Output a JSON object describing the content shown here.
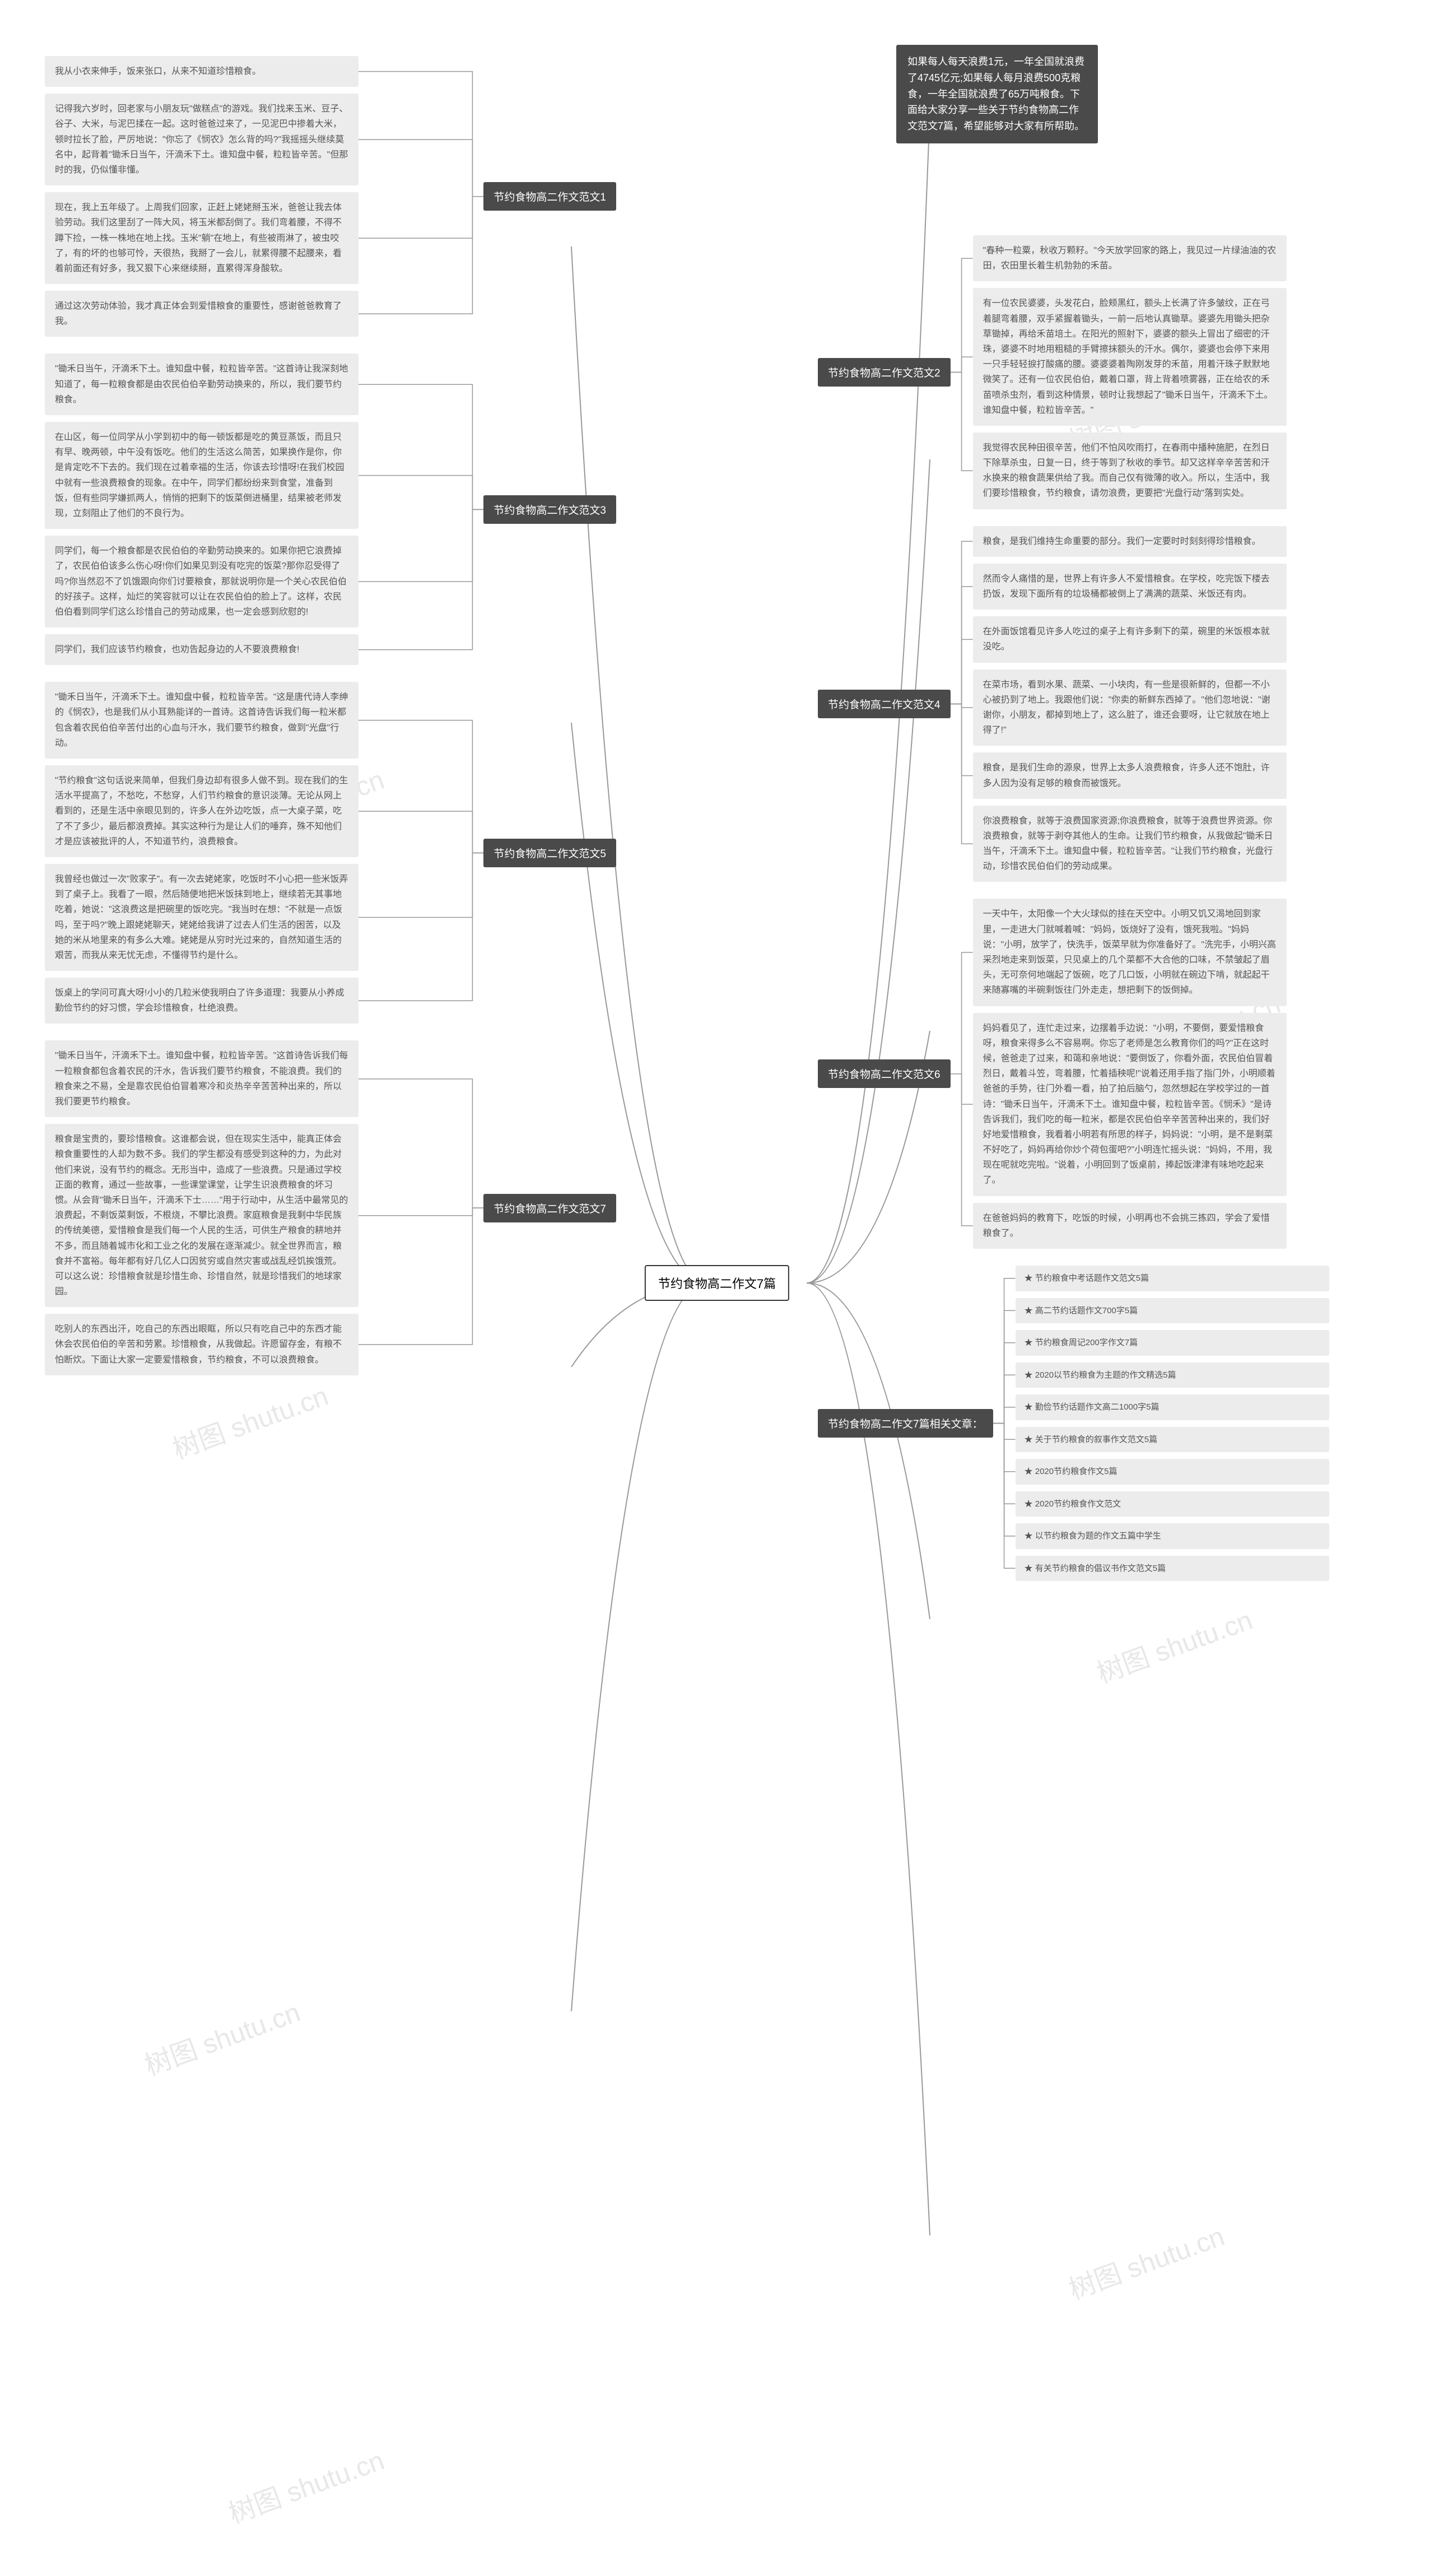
{
  "center": "节约食物高二作文7篇",
  "intro": "如果每人每天浪费1元，一年全国就浪费了4745亿元;如果每人每月浪费500克粮食，一年全国就浪费了65万吨粮食。下面给大家分享一些关于节约食物高二作文范文7篇，希望能够对大家有所帮助。",
  "watermarks": [
    "树图 shutu.cn"
  ],
  "left_branches": [
    {
      "title": "节约食物高二作文范文1",
      "leaves": [
        "我从小衣来伸手，饭来张口，从来不知道珍惜粮食。",
        "记得我六岁时，回老家与小朋友玩\"做糕点\"的游戏。我们找来玉米、豆子、谷子、大米，与泥巴揉在一起。这时爸爸过来了，一见泥巴中掺着大米，顿时拉长了脸，严厉地说：\"你忘了《悯农》怎么背的吗?\"我摇摇头继续莫名中，起背着\"锄禾日当午，汗滴禾下土。谁知盘中餐，粒粒皆辛苦。\"但那时的我，仍似懂非懂。",
        "现在，我上五年级了。上周我们回家，正赶上姥姥掰玉米，爸爸让我去体验劳动。我们这里刮了一阵大风，将玉米都刮倒了。我们弯着腰，不得不蹲下捡，一株一株地在地上找。玉米\"躺\"在地上，有些被雨淋了，被虫咬了，有的坏的也够可怜，天很热，我掰了一会儿，就累得腰不起腰来，看着前面还有好多，我又狠下心来继续掰，直累得浑身酸软。",
        "通过这次劳动体验，我才真正体会到爱惜粮食的重要性，感谢爸爸教育了我。"
      ]
    },
    {
      "title": "节约食物高二作文范文3",
      "leaves": [
        "\"锄禾日当午，汗滴禾下土。谁知盘中餐，粒粒皆辛苦。\"这首诗让我深刻地知道了，每一粒粮食都是由农民伯伯辛勤劳动换来的，所以，我们要节约粮食。",
        "在山区，每一位同学从小学到初中的每一顿饭都是吃的黄豆蒸饭，而且只有早、晚两顿，中午没有饭吃。他们的生活这么简苦，如果换作是你，你是肯定吃不下去的。我们现在过着幸福的生活，你该去珍惜呀!在我们校园中就有一些浪费粮食的现象。在中午，同学们都纷纷来到食堂，准备到饭，但有些同学嫌抓两人，悄悄的把剩下的饭菜倒进桶里，结果被老师发现，立刻阻止了他们的不良行为。",
        "同学们，每一个粮食都是农民伯伯的辛勤劳动换来的。如果你把它浪费掉了，农民伯伯该多么伤心呀!你们如果见到没有吃完的饭菜?那你忍受得了吗?你当然忍不了饥饿跟向你们讨要粮食，那就说明你是一个关心农民伯伯的好孩子。这样，灿烂的笑容就可以让在农民伯伯的脸上了。这样，农民伯伯看到同学们这么珍惜自己的劳动成果，也一定会感到欣慰的!",
        "同学们，我们应该节约粮食，也劝告起身边的人不要浪费粮食!"
      ]
    },
    {
      "title": "节约食物高二作文范文5",
      "leaves": [
        "\"锄禾日当午，汗滴禾下土。谁知盘中餐，粒粒皆辛苦。\"这是唐代诗人李绅的《悯农》，也是我们从小耳熟能详的一首诗。这首诗告诉我们每一粒米都包含着农民伯伯辛苦付出的心血与汗水，我们要节约粮食，做到\"光盘\"行动。",
        "\"节约粮食\"这句话说来简单，但我们身边却有很多人做不到。现在我们的生活水平提高了，不愁吃，不愁穿，人们节约粮食的意识淡薄。无论从网上看到的，还是生活中亲眼见到的，许多人在外边吃饭，点一大桌子菜，吃了不了多少，最后都浪费掉。其实这种行为是让人们的唾弃，殊不知他们才是应该被批评的人，不知道节约，浪费粮食。",
        "我曾经也做过一次\"败家子\"。有一次去姥姥家，吃饭时不小心把一些米饭弄到了桌子上。我看了一眼，然后随便地把米饭抹到地上，继续若无其事地吃着，她说：\"这浪费这是把碗里的饭吃完。\"我当时在想：\"不就是一点饭吗，至于吗?\"晚上跟姥姥聊天，姥姥给我讲了过去人们生活的困苦，以及她的米从地里来的有多么大难。姥姥是从穷时光过来的，自然知道生活的艰苦，而我从来无忧无虑，不懂得节约是什么。",
        "饭桌上的学问可真大呀!小小的几粒米使我明白了许多道理：我要从小养成勤俭节约的好习惯，学会珍惜粮食，杜绝浪费。"
      ]
    },
    {
      "title": "节约食物高二作文范文7",
      "leaves": [
        "\"锄禾日当午，汗滴禾下土。谁知盘中餐，粒粒皆辛苦。\"这首诗告诉我们每一粒粮食都包含着农民的汗水，告诉我们要节约粮食，不能浪费。我们的粮食来之不易，全是靠农民伯伯冒着寒冷和炎热辛辛苦苦种出来的，所以我们要更节约粮食。",
        "粮食是宝贵的，要珍惜粮食。这谁都会说，但在现实生活中，能真正体会粮食重要性的人却为数不多。我们的学生都没有感受到这种的力，为此对他们来说，没有节约的概念。无形当中，造成了一些浪费。只是通过学校正面的教育，通过一些故事，一些课堂课堂，让学生识浪费粮食的坏习惯。从会背\"锄禾日当午，汗滴禾下士……\"用于行动中，从生活中最常见的浪费起，不剩饭菜剩饭，不根烧，不攀比浪费。家庭粮食是我剩中华民族的传统美德，爱惜粮食是我们每一个人民的生活，可供生产粮食的耕地并不多，而且随着城市化和工业之化的发展在逐渐减少。就全世界而言，粮食并不富裕。每年都有好几亿人口因贫穷或自然灾害或战乱经饥挨饿荒。可以这么说：珍惜粮食就是珍惜生命、珍惜自然，就是珍惜我们的地球家园。",
        "吃别人的东西出汗，吃自己的东西出眼眶，所以只有吃自己中的东西才能休会农民伯伯的辛苦和劳累。珍惜粮食，从我做起。许愿留存金，有粮不怕断炊。下面让大家一定要爱惜粮食，节约粮食，不可以浪费粮食。"
      ]
    }
  ],
  "right_branches": [
    {
      "title": "节约食物高二作文范文2",
      "leaves": [
        "\"春种一粒粟，秋收万颗籽。\"今天放学回家的路上，我见过一片绿油油的农田，农田里长着生机勃勃的禾苗。",
        "有一位农民婆婆，头发花白，脸颊黑红，额头上长满了许多皱纹，正在弓着腿弯着腰，双手紧握着锄头，一前一后地认真锄草。婆婆先用锄头把杂草锄掉，再给禾苗培土。在阳光的照射下，婆婆的额头上冒出了细密的汗珠，婆婆不时地用粗糙的手臂擦抹额头的汗水。偶尔，婆婆也会停下来用一只手轻轻捩打酸痛的腰。婆婆婆着陶刚发芽的禾苗，用着汗珠子默默地微笑了。还有一位农民伯伯，戴着口罩，背上背着喷雾器，正在给农的禾苗喷杀虫剂，看到这种情景，顿时让我想起了\"锄禾日当午，汗滴禾下土。谁知盘中餐，粒粒皆辛苦。\"",
        "我觉得农民种田很辛苦，他们不怕风吹雨打，在春雨中播种施肥，在烈日下除草杀虫，日复一日，终于等到了秋收的季节。却又这样辛辛苦苦和汗水换来的粮食蔬果供给了我。而自己仅有微薄的收入。所以，生活中，我们要珍惜粮食，节约粮食，请勿浪费，更要把\"光盘行动\"落到实处。"
      ]
    },
    {
      "title": "节约食物高二作文范文4",
      "leaves": [
        "粮食，是我们维持生命重要的部分。我们一定要时时刻刻得珍惜粮食。",
        "然而令人痛惜的是，世界上有许多人不爱惜粮食。在学校，吃完饭下楼去扔饭，发现下面所有的垃圾桶都被倒上了满满的蔬菜、米饭还有肉。",
        "在外面饭馆看见许多人吃过的桌子上有许多剩下的菜，碗里的米饭根本就没吃。",
        "在菜市场，看到水果、蔬菜、一小块肉，有一些是很新鲜的，但都一不小心被扔到了地上。我跟他们说：\"你卖的新鲜东西掉了。\"他们忽地说：\"谢谢你，小朋友，都掉到地上了，这么脏了，谁还会要呀，让它就放在地上得了!\"",
        "粮食，是我们生命的源泉，世界上太多人浪费粮食，许多人还不饱肚，许多人因为没有足够的粮食而被饿死。",
        "你浪费粮食，就等于浪费国家资源;你浪费粮食，就等于浪费世界资源。你浪费粮食，就等于剥夺其他人的生命。让我们节约粮食，从我做起\"锄禾日当午，汗滴禾下土。谁知盘中餐，粒粒皆辛苦。\"让我们节约粮食，光盘行动，珍惜农民伯伯们的劳动成果。"
      ]
    },
    {
      "title": "节约食物高二作文范文6",
      "leaves": [
        "一天中午，太阳像一个大火球似的挂在天空中。小明又饥又渴地回到家里，一走进大门就喊着喊：\"妈妈，饭烧好了没有，饿死我啦。\"妈妈说：\"小明，放学了，快洗手，饭菜早就为你准备好了。\"洗完手，小明兴高采烈地走来到饭菜，只见桌上的几个菜都不大合他的口味，不禁皱起了眉头，无可奈何地端起了饭碗，吃了几口饭，小明就在碗边下啃，就起起干来随寡嘴的半碗剩饭往门外走走，想把剩下的饭倒掉。",
        "妈妈看见了，连忙走过来，边摆着手边说：\"小明，不要倒，要爱惜粮食呀，粮食来得多么不容易啊。你忘了老师是怎么教育你们的吗?\"正在这时候，爸爸走了过来，和蔼和亲地说：\"要倒饭了，你看外面，农民伯伯冒着烈日，戴着斗笠，弯着腰，忙着插秧呢!\"说着还用手指了指门外，小明顺着爸爸的手势，往门外看一看，拍了拍后脑勺，忽然想起在学校学过的一首诗：\"锄禾日当午，汗滴禾下土。谁知盘中餐，粒粒皆辛苦。《悯禾》\"是诗告诉我们，我们吃的每一粒米，都是农民伯伯辛辛苦苦种出来的，我们好好地爱惜粮食，我看着小明若有所思的样子，妈妈说：\"小明，是不是剩菜不好吃了，妈妈再给你炒个荷包蛋吧?\"小明连忙摇头说：\"妈妈，不用，我现在呢就吃完啦。\"说着，小明回到了饭桌前，捧起饭津津有味地吃起来了。",
        "在爸爸妈妈的教育下，吃饭的时候，小明再也不会挑三拣四，学会了爱惜粮食了。"
      ]
    },
    {
      "title": "节约食物高二作文7篇相关文章：",
      "leaves": [
        "★ 节约粮食中考话题作文范文5篇",
        "★ 高二节约话题作文700字5篇",
        "★ 节约粮食周记200字作文7篇",
        "★ 2020以节约粮食为主题的作文精选5篇",
        "★ 勤俭节约话题作文高二1000字5篇",
        "★ 关于节约粮食的叙事作文范文5篇",
        "★ 2020节约粮食作文5篇",
        "★ 2020节约粮食作文范文",
        "★ 以节约粮食为题的作文五篇中学生",
        "★ 有关节约粮食的倡议书作文范文5篇"
      ]
    }
  ],
  "colors": {
    "center_bg": "#ffffff",
    "center_border": "#333333",
    "branch_bg": "#4a4a4a",
    "branch_fg": "#ffffff",
    "leaf_bg": "#ececec",
    "leaf_fg": "#555555",
    "line": "#999999",
    "watermark": "#eeeeee"
  }
}
